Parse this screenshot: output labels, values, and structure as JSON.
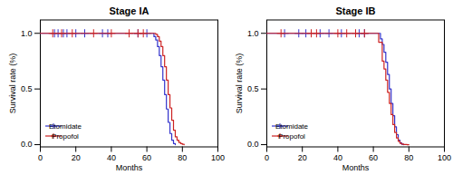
{
  "chart_data": [
    {
      "type": "step",
      "title": "Stage IA",
      "xlabel": "Months",
      "ylabel": "Survival rate (%)",
      "xlim": [
        0,
        100
      ],
      "ylim": [
        -0.02,
        1.12
      ],
      "xticks": [
        0,
        20,
        40,
        60,
        80,
        100
      ],
      "yticks": [
        {
          "value": 0.0,
          "label": "0.0"
        },
        0.5,
        {
          "value": 1.0,
          "label": "1.0"
        }
      ],
      "legend": "lower left",
      "series": [
        {
          "name": "Etomidate",
          "color": "#3333cc",
          "marker": "plus",
          "x": [
            0,
            63,
            64,
            65,
            66,
            67,
            68,
            69,
            70,
            71,
            72,
            73,
            74,
            75,
            76
          ],
          "values": [
            1.0,
            1.0,
            0.97,
            0.94,
            0.88,
            0.8,
            0.7,
            0.58,
            0.45,
            0.32,
            0.2,
            0.1,
            0.04,
            0.01,
            0.0
          ],
          "censor_x": [
            8,
            10,
            13,
            15,
            20,
            25,
            35,
            38,
            55,
            60
          ],
          "censor_values": [
            1.0,
            1.0,
            1.0,
            1.0,
            1.0,
            1.0,
            1.0,
            1.0,
            1.0,
            1.0
          ]
        },
        {
          "name": "Propofol",
          "color": "#cc2222",
          "marker": "plus",
          "x": [
            0,
            60,
            65,
            66,
            67,
            68,
            69,
            70,
            71,
            72,
            73,
            74,
            75,
            76,
            77,
            78,
            79,
            80,
            81
          ],
          "values": [
            1.0,
            1.0,
            0.99,
            0.97,
            0.93,
            0.88,
            0.8,
            0.7,
            0.58,
            0.45,
            0.33,
            0.22,
            0.13,
            0.07,
            0.04,
            0.02,
            0.01,
            0.003,
            0.0
          ],
          "censor_x": [
            7,
            12,
            18,
            30,
            40,
            50,
            55,
            58
          ],
          "censor_values": [
            1.0,
            1.0,
            1.0,
            1.0,
            1.0,
            1.0,
            1.0,
            1.0
          ]
        }
      ]
    },
    {
      "type": "step",
      "title": "Stage IB",
      "xlabel": "Months",
      "ylabel": "Survival rate (%)",
      "xlim": [
        0,
        100
      ],
      "ylim": [
        -0.02,
        1.12
      ],
      "xticks": [
        0,
        20,
        40,
        60,
        80,
        100
      ],
      "yticks": [
        {
          "value": 0.0,
          "label": "0.0"
        },
        0.5,
        {
          "value": 1.0,
          "label": "1.0"
        }
      ],
      "legend": "lower left",
      "series": [
        {
          "name": "Etomidate",
          "color": "#3333cc",
          "marker": "plus",
          "x": [
            0,
            62,
            64,
            65,
            66,
            67,
            68,
            69,
            70,
            71,
            72,
            73,
            74,
            75,
            76,
            77
          ],
          "values": [
            1.0,
            1.0,
            0.95,
            0.9,
            0.83,
            0.74,
            0.63,
            0.5,
            0.37,
            0.26,
            0.16,
            0.09,
            0.04,
            0.015,
            0.004,
            0.0
          ],
          "censor_x": [
            10,
            18,
            22,
            30,
            35,
            42,
            52,
            55
          ],
          "censor_values": [
            1.0,
            1.0,
            1.0,
            1.0,
            1.0,
            1.0,
            1.0,
            1.0
          ]
        },
        {
          "name": "Propofol",
          "color": "#cc2222",
          "marker": "plus",
          "x": [
            0,
            60,
            63,
            65,
            66,
            67,
            68,
            69,
            70,
            71,
            72,
            73,
            74,
            75,
            76,
            77,
            78,
            79,
            80
          ],
          "values": [
            1.0,
            1.0,
            0.92,
            0.75,
            0.68,
            0.58,
            0.47,
            0.37,
            0.27,
            0.18,
            0.11,
            0.06,
            0.03,
            0.012,
            0.005,
            0.002,
            0.001,
            0.0,
            0.0
          ],
          "censor_x": [
            8,
            25,
            28,
            40,
            45,
            50,
            55
          ],
          "censor_values": [
            1.0,
            1.0,
            1.0,
            1.0,
            1.0,
            1.0,
            1.0
          ]
        }
      ]
    }
  ]
}
